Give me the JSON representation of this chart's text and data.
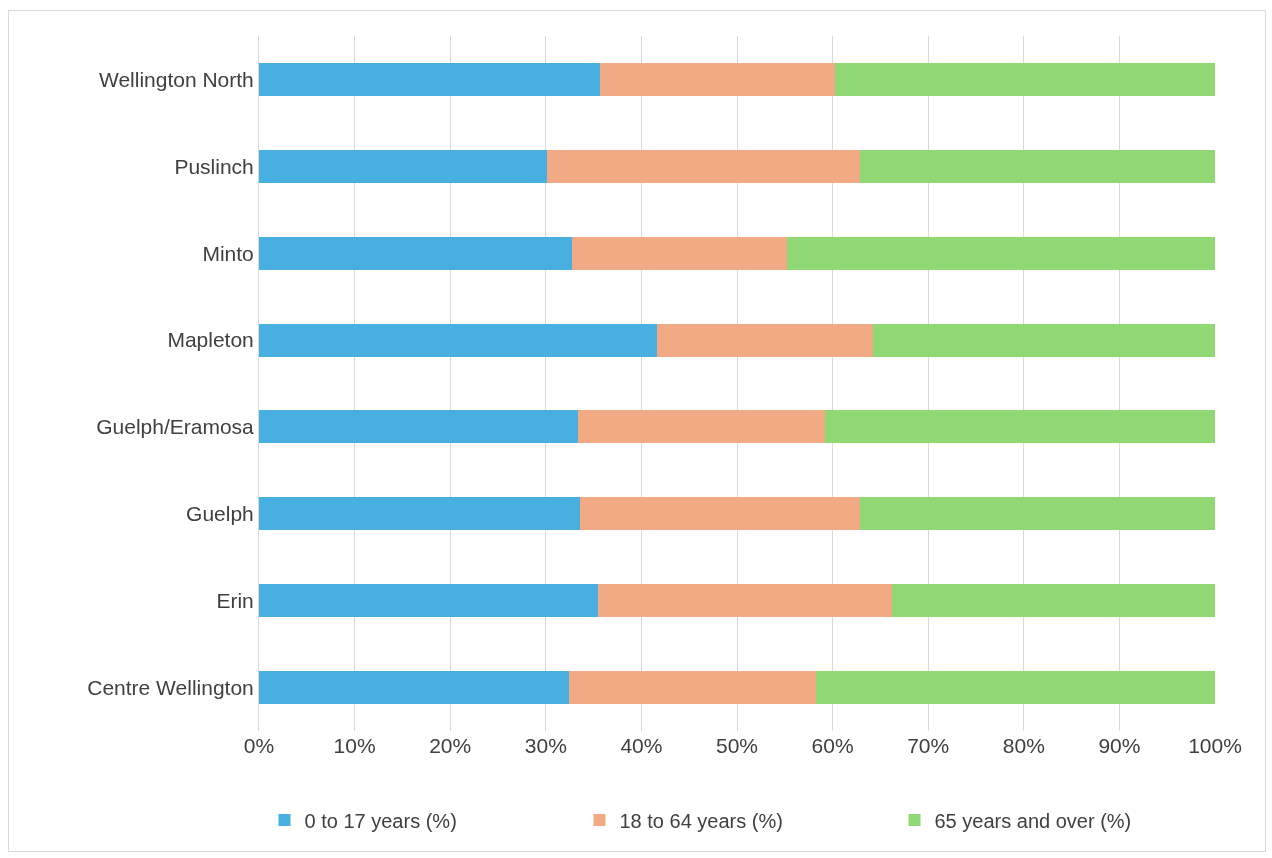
{
  "chart_data": {
    "type": "bar",
    "orientation": "horizontal",
    "stacked": true,
    "categories": [
      "Wellington North",
      "Puslinch",
      "Minto",
      "Mapleton",
      "Guelph/Eramosa",
      "Guelph",
      "Erin",
      "Centre Wellington"
    ],
    "series": [
      {
        "name": "0 to 17 years (%)",
        "color": "#47b0e0",
        "values": [
          35.7,
          30.1,
          32.7,
          41.6,
          33.4,
          33.6,
          35.5,
          32.4
        ]
      },
      {
        "name": "18 to 64 years (%)",
        "color": "#f2aa84",
        "values": [
          24.6,
          32.8,
          22.5,
          22.6,
          25.8,
          29.3,
          30.7,
          25.9
        ]
      },
      {
        "name": "65 years and over (%)",
        "color": "#8fd873",
        "values": [
          39.7,
          37.1,
          44.8,
          35.8,
          40.8,
          37.1,
          33.8,
          41.7
        ]
      }
    ],
    "xlim": [
      0,
      100
    ],
    "xticks": [
      {
        "value": 0,
        "label": "0%"
      },
      {
        "value": 10,
        "label": "10%"
      },
      {
        "value": 20,
        "label": "20%"
      },
      {
        "value": 30,
        "label": "30%"
      },
      {
        "value": 40,
        "label": "40%"
      },
      {
        "value": 50,
        "label": "50%"
      },
      {
        "value": 60,
        "label": "60%"
      },
      {
        "value": 70,
        "label": "70%"
      },
      {
        "value": 80,
        "label": "80%"
      },
      {
        "value": 90,
        "label": "90%"
      },
      {
        "value": 100,
        "label": "100%"
      }
    ],
    "grid": "x",
    "legend": "bottom"
  }
}
